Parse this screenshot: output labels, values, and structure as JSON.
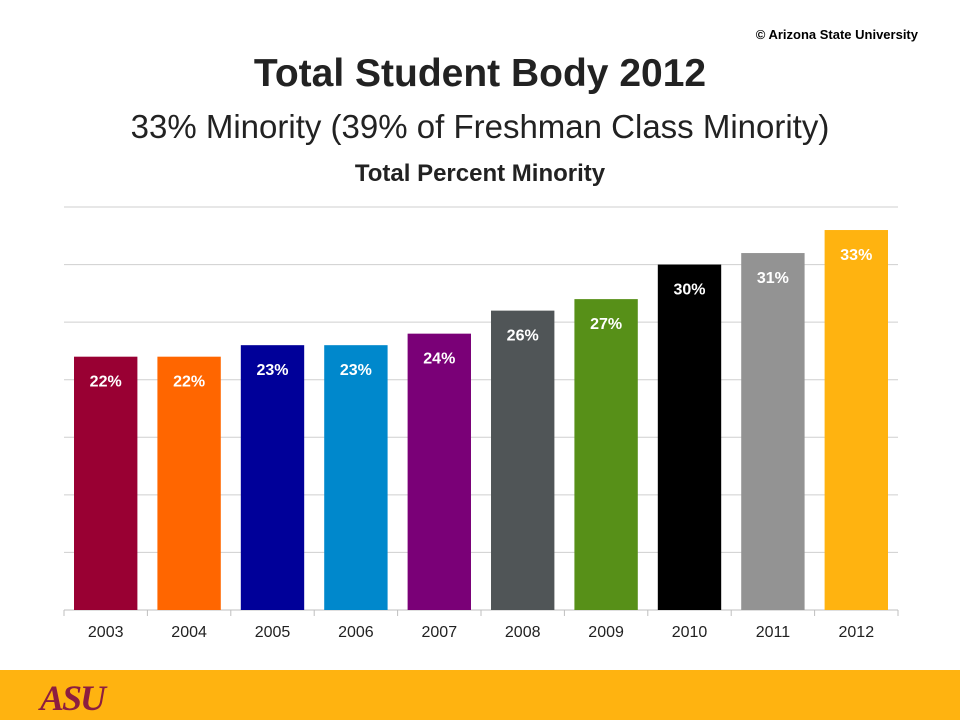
{
  "copyright": "© Arizona State University",
  "title": "Total Student Body 2012",
  "subtitle": "33% Minority (39% of Freshman Class Minority)",
  "footer": {
    "logo_text": "ASU",
    "background": "#ffb310",
    "logo_color": "#8c1d40"
  },
  "chart_data": {
    "type": "bar",
    "title": "Total Percent Minority",
    "xlabel": "",
    "ylabel": "",
    "categories": [
      "2003",
      "2004",
      "2005",
      "2006",
      "2007",
      "2008",
      "2009",
      "2010",
      "2011",
      "2012"
    ],
    "values": [
      22,
      22,
      23,
      23,
      24,
      26,
      27,
      30,
      31,
      33
    ],
    "data_labels": [
      "22%",
      "22%",
      "23%",
      "23%",
      "24%",
      "26%",
      "27%",
      "30%",
      "31%",
      "33%"
    ],
    "colors": [
      "#990033",
      "#ff6600",
      "#000099",
      "#0088cc",
      "#7a0077",
      "#505557",
      "#579018",
      "#000000",
      "#939393",
      "#ffb310"
    ],
    "label_colors": [
      "#ffffff",
      "#ffffff",
      "#ffffff",
      "#ffffff",
      "#ffffff",
      "#ffffff",
      "#ffffff",
      "#ffffff",
      "#ffffff",
      "#ffffff"
    ],
    "ylim": [
      0,
      35
    ],
    "grid": true,
    "legend": "none"
  }
}
